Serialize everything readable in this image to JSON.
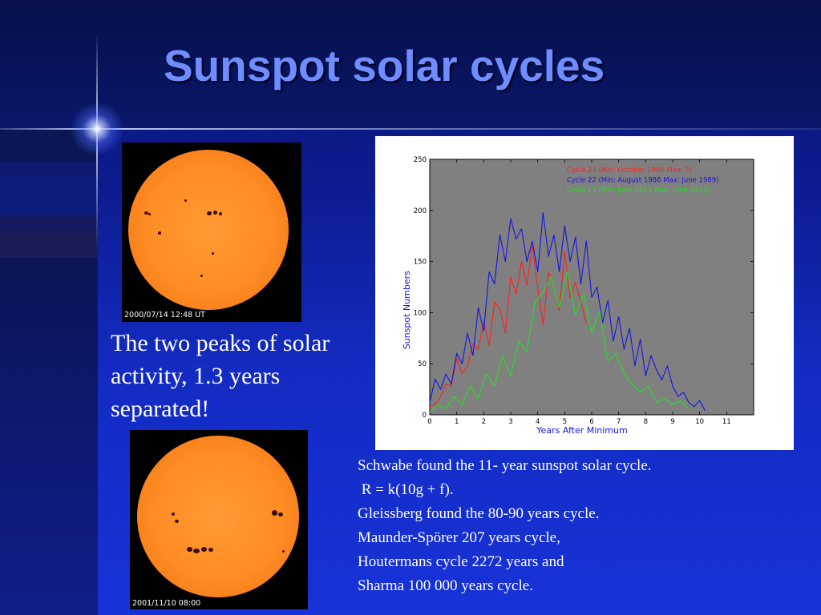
{
  "slide": {
    "title": "Sunspot solar cycles",
    "image_top_caption": "2000/07/14 12:48 UT",
    "image_bottom_caption": "2001/11/10 08:00",
    "peaks_text": "The two peaks of solar activity, 1.3 years separated!",
    "notes": [
      "Schwabe found the 11- year sunspot solar cycle.",
      " R = k(10g + f).",
      "Gleissberg found the 80-90 years cycle.",
      "Maunder-Spörer 207 years cycle,",
      "Houtermans cycle 2272 years and",
      "Sharma 100 000 years cycle."
    ]
  },
  "chart_data": {
    "type": "line",
    "title": "",
    "xlabel": "Years After Minimum",
    "ylabel": "Sunspot Numbers",
    "xlim": [
      0,
      12
    ],
    "ylim": [
      0,
      250
    ],
    "x_ticks": [
      "0",
      "1",
      "2",
      "3",
      "4",
      "5",
      "6",
      "7",
      "8",
      "9",
      "10",
      "11"
    ],
    "y_ticks": [
      "0",
      "50",
      "100",
      "150",
      "200",
      "250"
    ],
    "grid": false,
    "background": "#808080",
    "legend_position": "top-right",
    "series": [
      {
        "name": "Cycle 23 (Min: October 1996 Max: ?)",
        "color": "#ff2020",
        "x": [
          0,
          0.2,
          0.4,
          0.6,
          0.8,
          1.0,
          1.2,
          1.4,
          1.6,
          1.8,
          2.0,
          2.2,
          2.4,
          2.6,
          2.8,
          3.0,
          3.2,
          3.4,
          3.6,
          3.8,
          4.0,
          4.2,
          4.4,
          4.6,
          4.8,
          5.0,
          5.2,
          5.4,
          5.6,
          5.8
        ],
        "values": [
          8,
          10,
          18,
          30,
          28,
          55,
          40,
          48,
          70,
          64,
          92,
          68,
          110,
          104,
          80,
          135,
          118,
          150,
          127,
          166,
          124,
          88,
          140,
          126,
          102,
          160,
          115,
          130,
          110,
          90
        ]
      },
      {
        "name": "Cycle 22 (Min: August 1986 Max: June 1989)",
        "color": "#1414e6",
        "x": [
          0,
          0.2,
          0.4,
          0.6,
          0.8,
          1.0,
          1.2,
          1.4,
          1.6,
          1.8,
          2.0,
          2.2,
          2.4,
          2.6,
          2.8,
          3.0,
          3.2,
          3.4,
          3.6,
          3.8,
          4.0,
          4.2,
          4.4,
          4.6,
          4.8,
          5.0,
          5.2,
          5.4,
          5.6,
          5.8,
          6.0,
          6.2,
          6.4,
          6.6,
          6.8,
          7.0,
          7.2,
          7.4,
          7.6,
          7.8,
          8.0,
          8.2,
          8.4,
          8.6,
          8.8,
          9.0,
          9.2,
          9.4,
          9.6,
          9.8,
          10.0,
          10.2
        ],
        "values": [
          12,
          35,
          25,
          40,
          30,
          60,
          50,
          80,
          58,
          105,
          82,
          140,
          128,
          176,
          150,
          192,
          172,
          182,
          150,
          170,
          140,
          198,
          155,
          176,
          140,
          185,
          150,
          174,
          128,
          170,
          115,
          125,
          90,
          112,
          72,
          96,
          64,
          85,
          48,
          74,
          38,
          58,
          44,
          34,
          48,
          28,
          18,
          22,
          12,
          8,
          14,
          4
        ]
      },
      {
        "name": "Cycle 15 (Min: June 1913 Max: June 1917)",
        "color": "#20e020",
        "x": [
          0,
          0.3,
          0.6,
          0.9,
          1.2,
          1.5,
          1.8,
          2.1,
          2.4,
          2.7,
          3.0,
          3.3,
          3.6,
          3.9,
          4.2,
          4.5,
          4.8,
          5.1,
          5.4,
          5.7,
          6.0,
          6.3,
          6.6,
          6.9,
          7.2,
          7.5,
          7.8,
          8.1,
          8.4,
          8.7,
          9.0,
          9.3,
          9.6
        ],
        "values": [
          3,
          10,
          6,
          18,
          10,
          28,
          16,
          40,
          28,
          58,
          38,
          72,
          62,
          110,
          120,
          135,
          105,
          140,
          98,
          118,
          80,
          102,
          52,
          60,
          40,
          30,
          22,
          28,
          12,
          16,
          10,
          14,
          5
        ]
      }
    ]
  }
}
